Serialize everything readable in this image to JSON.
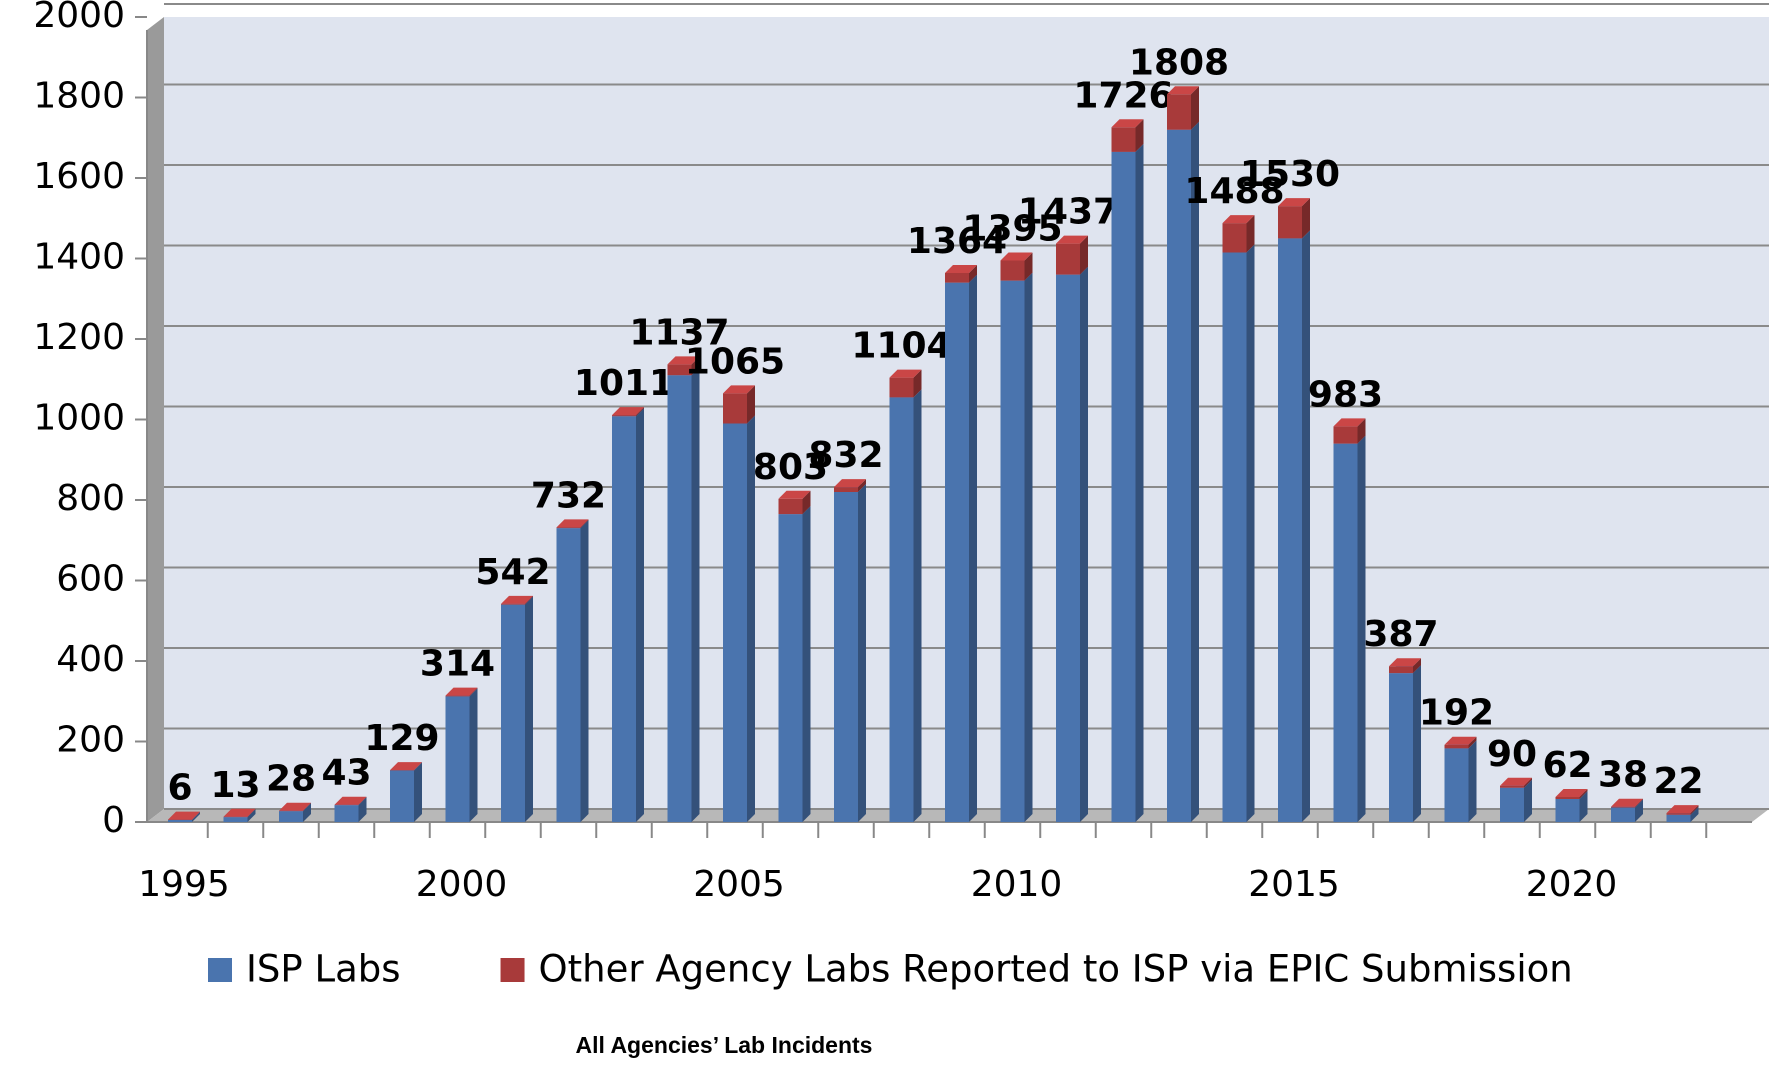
{
  "chart_data": {
    "type": "bar",
    "stacked": true,
    "title": "All Agencies’ Lab Incidents",
    "categories": [
      "1995",
      null,
      null,
      null,
      null,
      "2000",
      null,
      null,
      null,
      null,
      "2005",
      null,
      null,
      null,
      null,
      "2010",
      null,
      null,
      null,
      null,
      "2015",
      null,
      null,
      null,
      null,
      "2020",
      null,
      null
    ],
    "series": [
      {
        "name": "ISP Labs",
        "color": "#4a74ae",
        "values": [
          5,
          12,
          27,
          42,
          128,
          312,
          540,
          730,
          1008,
          1110,
          990,
          765,
          820,
          1055,
          1340,
          1345,
          1360,
          1665,
          1720,
          1415,
          1450,
          940,
          370,
          183,
          85,
          57,
          36,
          18
        ]
      },
      {
        "name": "Other Agency Labs Reported to ISP via EPIC Submission",
        "color": "#a83a3a",
        "values": [
          1,
          1,
          1,
          1,
          1,
          2,
          2,
          2,
          3,
          27,
          75,
          38,
          12,
          49,
          24,
          50,
          77,
          61,
          88,
          73,
          80,
          43,
          17,
          9,
          5,
          5,
          2,
          4
        ]
      }
    ],
    "totals": [
      6,
      13,
      28,
      43,
      129,
      314,
      542,
      732,
      1011,
      1137,
      1065,
      803,
      832,
      1104,
      1364,
      1395,
      1437,
      1726,
      1808,
      1488,
      1530,
      983,
      387,
      192,
      90,
      62,
      38,
      22
    ],
    "ylim": [
      0,
      2000
    ],
    "yticks": [
      0,
      200,
      400,
      600,
      800,
      1000,
      1200,
      1400,
      1600,
      1800,
      2000
    ],
    "grid": true,
    "legend": "bottom"
  }
}
